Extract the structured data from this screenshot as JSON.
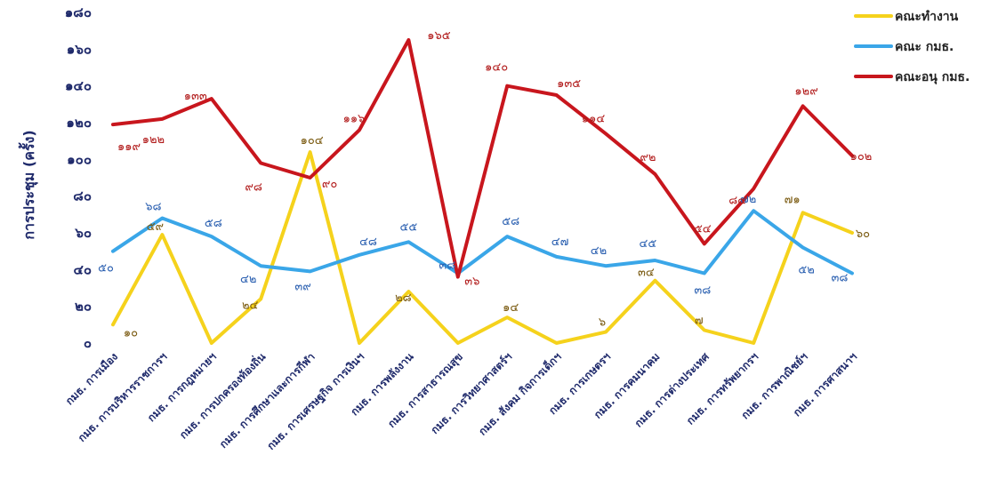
{
  "chart_data": {
    "type": "line",
    "ylabel": "การประชุม (ครั้ง)",
    "ylim": [
      0,
      180
    ],
    "yticks": [
      {
        "value": 0,
        "label": "๐"
      },
      {
        "value": 20,
        "label": "๒๐"
      },
      {
        "value": 40,
        "label": "๔๐"
      },
      {
        "value": 60,
        "label": "๖๐"
      },
      {
        "value": 80,
        "label": "๘๐"
      },
      {
        "value": 100,
        "label": "๑๐๐"
      },
      {
        "value": 120,
        "label": "๑๒๐"
      },
      {
        "value": 140,
        "label": "๑๔๐"
      },
      {
        "value": 160,
        "label": "๑๖๐"
      },
      {
        "value": 180,
        "label": "๑๘๐"
      }
    ],
    "categories": [
      "กมธ. การเมือง",
      "กมธ. การบริหารราชการฯ",
      "กมธ. การกฎหมายฯ",
      "กมธ. การปกครองท้องถิ่น",
      "กมธ. การศึกษาและการกีฬา",
      "กมธ. การเศรษฐกิจ การเงินฯ",
      "กมธ. การพลังงาน",
      "กมธ. การสาธารณสุข",
      "กมธ. การวิทยาศาสตร์ฯ",
      "กมธ. สังคม กิจการเด็กฯ",
      "กมธ. การเกษตรฯ",
      "กมธ. การคมนาคม",
      "กมธ. การต่างประเทศ",
      "กมธ. การทรัพยากรฯ",
      "กมธ. การพาณิชย์ฯ",
      "กมธ. การศาสนาฯ"
    ],
    "legend_position": "top-right",
    "series": [
      {
        "name": "คณะทำงาน",
        "color": "#f5d21c",
        "label_color": "#7a5a10",
        "values": [
          10,
          59,
          0,
          24,
          104,
          0,
          28,
          0,
          14,
          0,
          6,
          34,
          7,
          0,
          71,
          60
        ],
        "labels": [
          "๑๐",
          "๕๙",
          "",
          "๒๔",
          "๑๐๔",
          "",
          "๒๘",
          "",
          "๑๔",
          "",
          "๖",
          "๓๔",
          "๗",
          "",
          "๗๑",
          "๖๐"
        ]
      },
      {
        "name": "คณะ กมธ.",
        "color": "#3aa6e8",
        "label_color": "#2a5fb0",
        "values": [
          50,
          68,
          58,
          42,
          39,
          48,
          55,
          38,
          58,
          47,
          42,
          45,
          38,
          72,
          52,
          38
        ],
        "labels": [
          "๕๐",
          "๖๘",
          "๕๘",
          "๔๒",
          "๓๙",
          "๔๘",
          "๕๕",
          "๓๘",
          "๕๘",
          "๔๗",
          "๔๒",
          "๔๕",
          "๓๘",
          "๗๒",
          "๕๒",
          "๓๘"
        ]
      },
      {
        "name": "คณะอนุ กมธ.",
        "color": "#c8161d",
        "label_color": "#b11a1a",
        "values": [
          119,
          122,
          133,
          98,
          90,
          116,
          165,
          36,
          140,
          135,
          114,
          92,
          54,
          84,
          129,
          102
        ],
        "labels": [
          "๑๑๙",
          "๑๒๒",
          "๑๓๓",
          "๙๘",
          "๙๐",
          "๑๑๖",
          "๑๖๕",
          "๓๖",
          "๑๔๐",
          "๑๓๕",
          "๑๑๔",
          "๙๒",
          "๕๔",
          "๘๔",
          "๑๒๙",
          "๑๐๒"
        ]
      }
    ]
  }
}
